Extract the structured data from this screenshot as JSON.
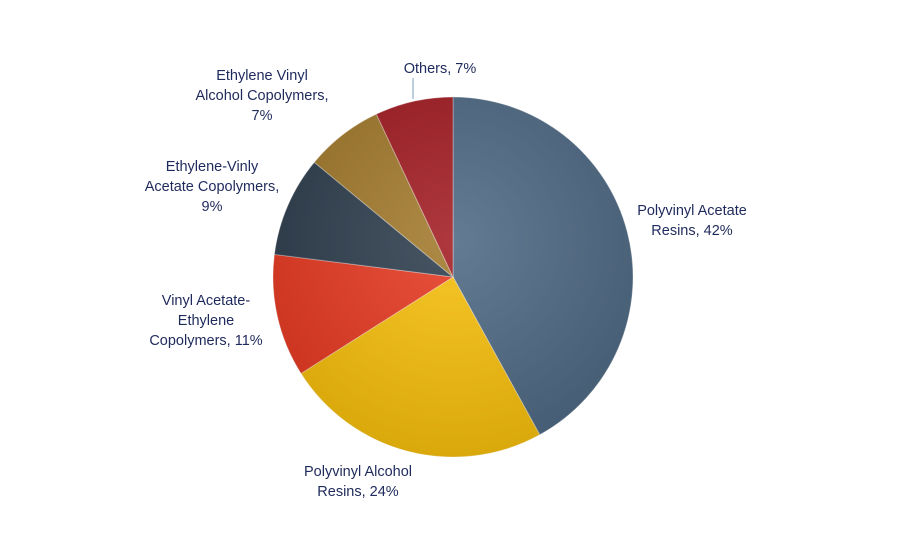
{
  "chart_data": {
    "type": "pie",
    "title": "",
    "start": "top",
    "direction": "clockwise",
    "slices": [
      {
        "name": "Polyvinyl Acetate Resins",
        "value": 42,
        "label_lines": [
          "Polyvinyl Acetate",
          "Resins, 42%"
        ],
        "color": "#4f6a84"
      },
      {
        "name": "Polyvinyl Alcohol Resins",
        "value": 24,
        "label_lines": [
          "Polyvinyl Alcohol",
          "Resins, 24%"
        ],
        "color": "#f7bf0c"
      },
      {
        "name": "Vinyl Acetate-Ethylene Copolymers",
        "value": 11,
        "label_lines": [
          "Vinyl Acetate-",
          "Ethylene",
          "Copolymers, 11%"
        ],
        "color": "#e63a22"
      },
      {
        "name": "Ethylene-Vinly Acetate Copolymers",
        "value": 9,
        "label_lines": [
          "Ethylene-Vinly",
          "Acetate Copolymers,",
          "9%"
        ],
        "color": "#2f3f4f"
      },
      {
        "name": "Ethylene Vinyl Alcohol Copolymers",
        "value": 7,
        "label_lines": [
          "Ethylene Vinyl",
          "Alcohol Copolymers,",
          "7%"
        ],
        "color": "#a27a2c"
      },
      {
        "name": "Others",
        "value": 7,
        "label_lines": [
          "Others, 7%"
        ],
        "color": "#a21d23"
      }
    ]
  }
}
